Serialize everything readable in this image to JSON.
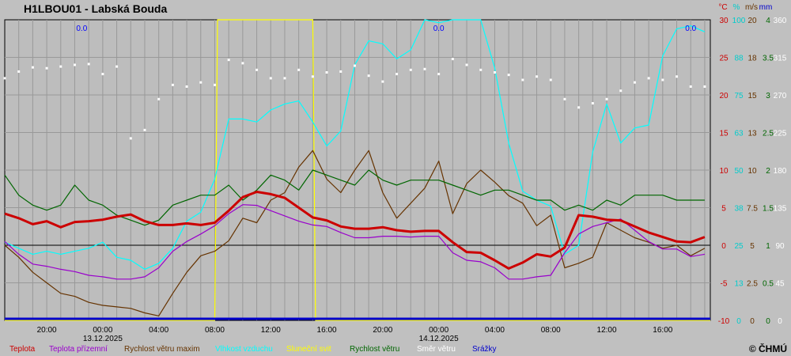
{
  "chart_data": {
    "type": "line",
    "title": "H1LBOU01 - Labská Bouda",
    "copyright": "© ČHMÚ",
    "axis_headers": [
      "°C",
      "%",
      "m/s",
      "mm"
    ],
    "x_tick_labels": [
      "20:00",
      "00:00",
      "04:00",
      "08:00",
      "12:00",
      "16:00",
      "20:00",
      "00:00",
      "04:00",
      "08:00",
      "12:00",
      "16:00"
    ],
    "x_tick_hours": [
      20,
      24,
      28,
      32,
      36,
      40,
      44,
      48,
      52,
      56,
      60,
      64
    ],
    "date_labels": [
      {
        "hour": 24,
        "label": "13.12.2025"
      },
      {
        "hour": 48,
        "label": "14.12.2025"
      }
    ],
    "x_range_hours": [
      17,
      67.4
    ],
    "right_axes": {
      "temp_c": [
        "30",
        "25",
        "20",
        "15",
        "10",
        "5",
        "0",
        "-5",
        "-10"
      ],
      "humidity_pct": [
        "100",
        "88",
        "75",
        "63",
        "50",
        "38",
        "25",
        "13",
        "0"
      ],
      "wind_gust_ms": [
        "20",
        "18",
        "15",
        "13",
        "10",
        "7.5",
        "5",
        "2.5",
        "0"
      ],
      "wind_ms": [
        "4",
        "3.5",
        "3",
        "2.5",
        "2",
        "1.5",
        "1",
        "0.5",
        "0"
      ],
      "direction_deg": [
        "360",
        "315",
        "270",
        "225",
        "180",
        "135",
        "90",
        "45",
        "0"
      ]
    },
    "ylim_temp": [
      -10,
      30
    ],
    "precip_annotations": [
      "0.0",
      "0.0",
      "0.0"
    ],
    "precip_annotation_hours": [
      22.5,
      48.0,
      66.0
    ],
    "legend": [
      {
        "name": "Teplota",
        "color": "#cc0000"
      },
      {
        "name": "Teplota přízemní",
        "color": "#9900cc"
      },
      {
        "name": "Rychlost větru maxim",
        "color": "#663300"
      },
      {
        "name": "Vlhkost vzduchu",
        "color": "#00ffff"
      },
      {
        "name": "Sluneční svit",
        "color": "#ffff00"
      },
      {
        "name": "Rychlost větru",
        "color": "#006600"
      },
      {
        "name": "Směr  větru",
        "color": "#ffffff"
      },
      {
        "name": "Srážky",
        "color": "#0000cc"
      }
    ],
    "series": [
      {
        "name": "Teplota",
        "unit": "°C",
        "x": [
          17,
          18,
          19,
          20,
          21,
          22,
          23,
          24,
          25,
          26,
          27,
          28,
          29,
          30,
          31,
          32,
          33,
          34,
          35,
          36,
          37,
          38,
          39,
          40,
          41,
          42,
          43,
          44,
          45,
          46,
          47,
          48,
          49,
          50,
          51,
          52,
          53,
          54,
          55,
          56,
          57,
          58,
          59,
          60,
          61,
          62,
          63,
          64,
          65,
          66,
          67
        ],
        "values": [
          4.2,
          3.6,
          2.8,
          3.2,
          2.4,
          3.1,
          3.2,
          3.4,
          3.8,
          4.1,
          3.2,
          2.7,
          2.7,
          2.9,
          2.7,
          3.0,
          4.6,
          6.4,
          7.1,
          6.8,
          6.3,
          5.0,
          3.7,
          3.3,
          2.5,
          2.2,
          2.2,
          2.4,
          2.0,
          1.8,
          1.9,
          1.9,
          0.4,
          -0.9,
          -1.0,
          -2.0,
          -3.1,
          -2.3,
          -1.2,
          -1.5,
          -0.3,
          4.0,
          3.8,
          3.4,
          3.3,
          2.5,
          1.7,
          1.1,
          0.5,
          0.4,
          1.1
        ]
      },
      {
        "name": "Teplota přízemní",
        "unit": "°C",
        "x": [
          17,
          18,
          19,
          20,
          21,
          22,
          23,
          24,
          25,
          26,
          27,
          28,
          29,
          30,
          31,
          32,
          33,
          34,
          35,
          36,
          37,
          38,
          39,
          40,
          41,
          42,
          43,
          44,
          45,
          46,
          47,
          48,
          49,
          50,
          51,
          52,
          53,
          54,
          55,
          56,
          57,
          58,
          59,
          60,
          61,
          62,
          63,
          64,
          65,
          66,
          67
        ],
        "values": [
          0.5,
          -1.2,
          -2.5,
          -2.8,
          -3.2,
          -3.5,
          -4.0,
          -4.2,
          -4.5,
          -4.5,
          -4.2,
          -3.0,
          -0.8,
          0.5,
          1.5,
          2.6,
          4.2,
          5.4,
          5.3,
          4.6,
          3.9,
          3.2,
          2.7,
          2.5,
          1.7,
          1.0,
          1.0,
          1.2,
          1.2,
          1.1,
          1.2,
          1.2,
          -1.0,
          -2.0,
          -2.2,
          -3.0,
          -4.5,
          -4.5,
          -4.2,
          -4.0,
          -1.0,
          1.5,
          2.5,
          3.0,
          3.5,
          2.0,
          0.5,
          -0.5,
          -0.5,
          -1.5,
          -1.2
        ]
      },
      {
        "name": "Rychlost větru maxim",
        "unit": "m/s",
        "x": [
          17,
          18,
          19,
          20,
          21,
          22,
          23,
          24,
          25,
          26,
          27,
          28,
          29,
          30,
          31,
          32,
          33,
          34,
          35,
          36,
          37,
          38,
          39,
          40,
          41,
          42,
          43,
          44,
          45,
          46,
          47,
          48,
          49,
          50,
          51,
          52,
          53,
          54,
          55,
          56,
          57,
          58,
          59,
          60,
          61,
          62,
          63,
          64,
          65,
          66,
          67
        ],
        "values": [
          5.0,
          4.2,
          3.2,
          2.5,
          1.8,
          1.6,
          1.2,
          1.0,
          0.9,
          0.8,
          0.5,
          0.3,
          1.8,
          3.2,
          4.3,
          4.6,
          5.3,
          6.8,
          6.5,
          8.0,
          8.5,
          10.2,
          11.3,
          9.4,
          8.5,
          10.0,
          11.3,
          8.5,
          6.8,
          7.8,
          8.8,
          10.6,
          7.1,
          9.1,
          10.0,
          9.2,
          8.3,
          7.8,
          6.3,
          7.0,
          3.5,
          3.8,
          4.2,
          6.5,
          6.0,
          5.5,
          5.2,
          4.8,
          5.0,
          4.3,
          4.8
        ]
      },
      {
        "name": "Vlhkost vzduchu",
        "unit": "%",
        "x": [
          17,
          18,
          19,
          20,
          21,
          22,
          23,
          24,
          25,
          26,
          27,
          28,
          29,
          30,
          31,
          32,
          33,
          34,
          35,
          36,
          37,
          38,
          39,
          40,
          41,
          42,
          43,
          44,
          45,
          46,
          47,
          48,
          49,
          50,
          51,
          52,
          53,
          54,
          55,
          56,
          57,
          58,
          59,
          60,
          61,
          62,
          63,
          64,
          65,
          66,
          67
        ],
        "values": [
          26,
          24,
          22,
          23,
          22,
          23,
          24,
          26,
          21,
          20,
          17,
          19,
          24,
          33,
          36,
          47,
          67,
          67,
          66,
          70,
          72,
          73,
          66,
          58,
          63,
          85,
          93,
          92,
          87,
          90,
          100,
          99,
          100,
          100,
          100,
          84,
          59,
          43,
          40,
          38,
          22,
          25,
          56,
          72,
          59,
          64,
          65,
          88,
          97,
          98,
          96
        ]
      },
      {
        "name": "Sluneční svit",
        "unit": "",
        "x": [
          17,
          32.0,
          32.2,
          33.0,
          38.0,
          38.4,
          39.0,
          39.2,
          67.4
        ],
        "values": [
          0,
          0,
          100,
          100,
          100,
          100,
          100,
          0,
          0
        ]
      },
      {
        "name": "Rychlost větru",
        "unit": "m/s",
        "x": [
          17,
          18,
          19,
          20,
          21,
          22,
          23,
          24,
          25,
          26,
          27,
          28,
          29,
          30,
          31,
          32,
          33,
          34,
          35,
          36,
          37,
          38,
          39,
          40,
          41,
          42,
          43,
          44,
          45,
          46,
          47,
          48,
          49,
          50,
          51,
          52,
          53,
          54,
          55,
          56,
          57,
          58,
          59,
          60,
          61,
          62,
          63,
          64,
          65,
          66,
          67
        ],
        "values": [
          0.9,
          0.5,
          0.3,
          0.2,
          0.3,
          0.7,
          0.4,
          0.3,
          0.1,
          0.0,
          -0.1,
          0.0,
          0.3,
          0.4,
          0.5,
          0.5,
          0.7,
          0.4,
          0.6,
          0.9,
          0.8,
          0.6,
          1.0,
          0.9,
          0.8,
          0.7,
          1.0,
          0.8,
          0.7,
          0.8,
          0.8,
          0.8,
          0.7,
          0.6,
          0.5,
          0.6,
          0.6,
          0.5,
          0.4,
          0.4,
          0.2,
          0.3,
          0.2,
          0.4,
          0.3,
          0.5,
          0.5,
          0.5,
          0.4,
          0.4,
          0.4
        ]
      },
      {
        "name": "Směr  větru",
        "unit": "°",
        "x": [
          17,
          18,
          19,
          20,
          21,
          22,
          23,
          24,
          25,
          26,
          27,
          28,
          29,
          30,
          31,
          32,
          33,
          34,
          35,
          36,
          37,
          38,
          39,
          40,
          41,
          42,
          43,
          44,
          45,
          46,
          47,
          48,
          49,
          50,
          51,
          52,
          53,
          54,
          55,
          56,
          57,
          58,
          59,
          60,
          61,
          62,
          63,
          64,
          65,
          66,
          67
        ],
        "values": [
          290,
          298,
          303,
          302,
          304,
          306,
          307,
          295,
          304,
          218,
          228,
          265,
          282,
          280,
          285,
          282,
          312,
          308,
          300,
          290,
          290,
          300,
          292,
          297,
          298,
          305,
          293,
          286,
          295,
          300,
          301,
          295,
          313,
          306,
          300,
          297,
          294,
          288,
          292,
          288,
          265,
          255,
          260,
          265,
          275,
          285,
          290,
          288,
          292,
          280,
          280
        ]
      },
      {
        "name": "Srážky",
        "unit": "mm",
        "x": [
          17,
          67.4
        ],
        "values": [
          0,
          0
        ]
      }
    ]
  }
}
